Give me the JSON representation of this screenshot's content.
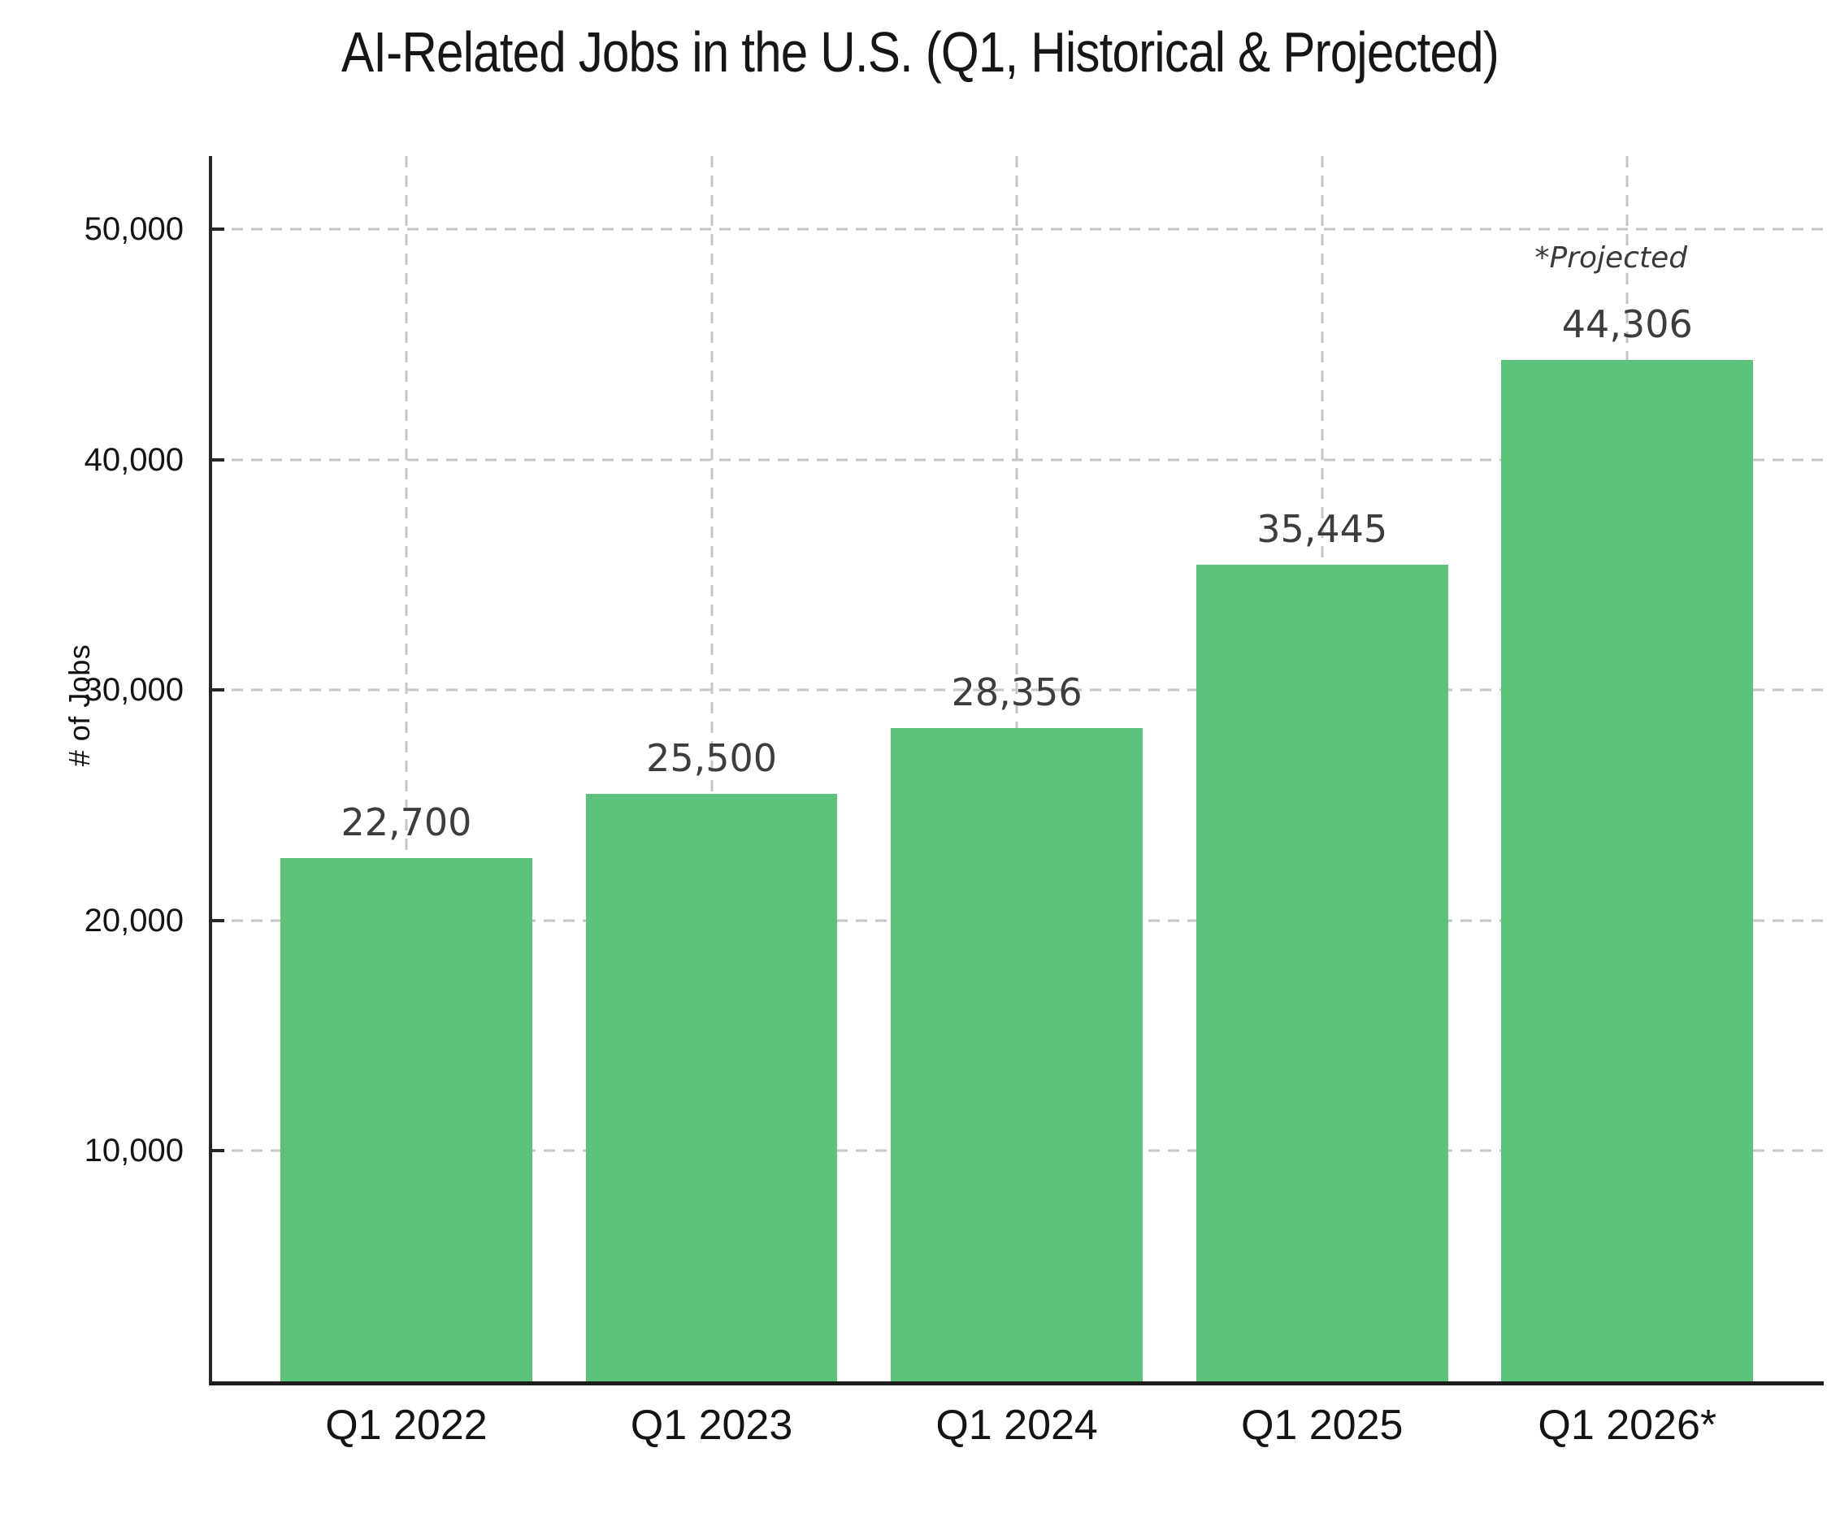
{
  "chart_data": {
    "type": "bar",
    "title": "AI-Related Jobs in the U.S. (Q1, Historical & Projected)",
    "xlabel": "",
    "ylabel": "# of Jobs",
    "categories": [
      "Q1 2022",
      "Q1 2023",
      "Q1 2024",
      "Q1 2025",
      "Q1 2026*"
    ],
    "values": [
      22700,
      25500,
      28356,
      35445,
      44306
    ],
    "value_labels": [
      "22,700",
      "25,500",
      "28,356",
      "35,445",
      "44,306"
    ],
    "yticks": [
      10000,
      20000,
      30000,
      40000,
      50000
    ],
    "ytick_labels": [
      "10,000",
      "20,000",
      "30,000",
      "40,000",
      "50,000"
    ],
    "ylim": [
      0,
      53170
    ],
    "grid": "on",
    "grid_style": "dashed-horizontal-and-vertical",
    "legend_position": "none",
    "annotation": {
      "text": "*Projected",
      "bar_index": 4
    },
    "colors": {
      "bar": "#5BC47A",
      "value_label": "#3D3D3D",
      "axis": "#262626",
      "tick_label": "#141414",
      "grid": "#C6C6C6",
      "background": "#FFFFFF"
    }
  }
}
